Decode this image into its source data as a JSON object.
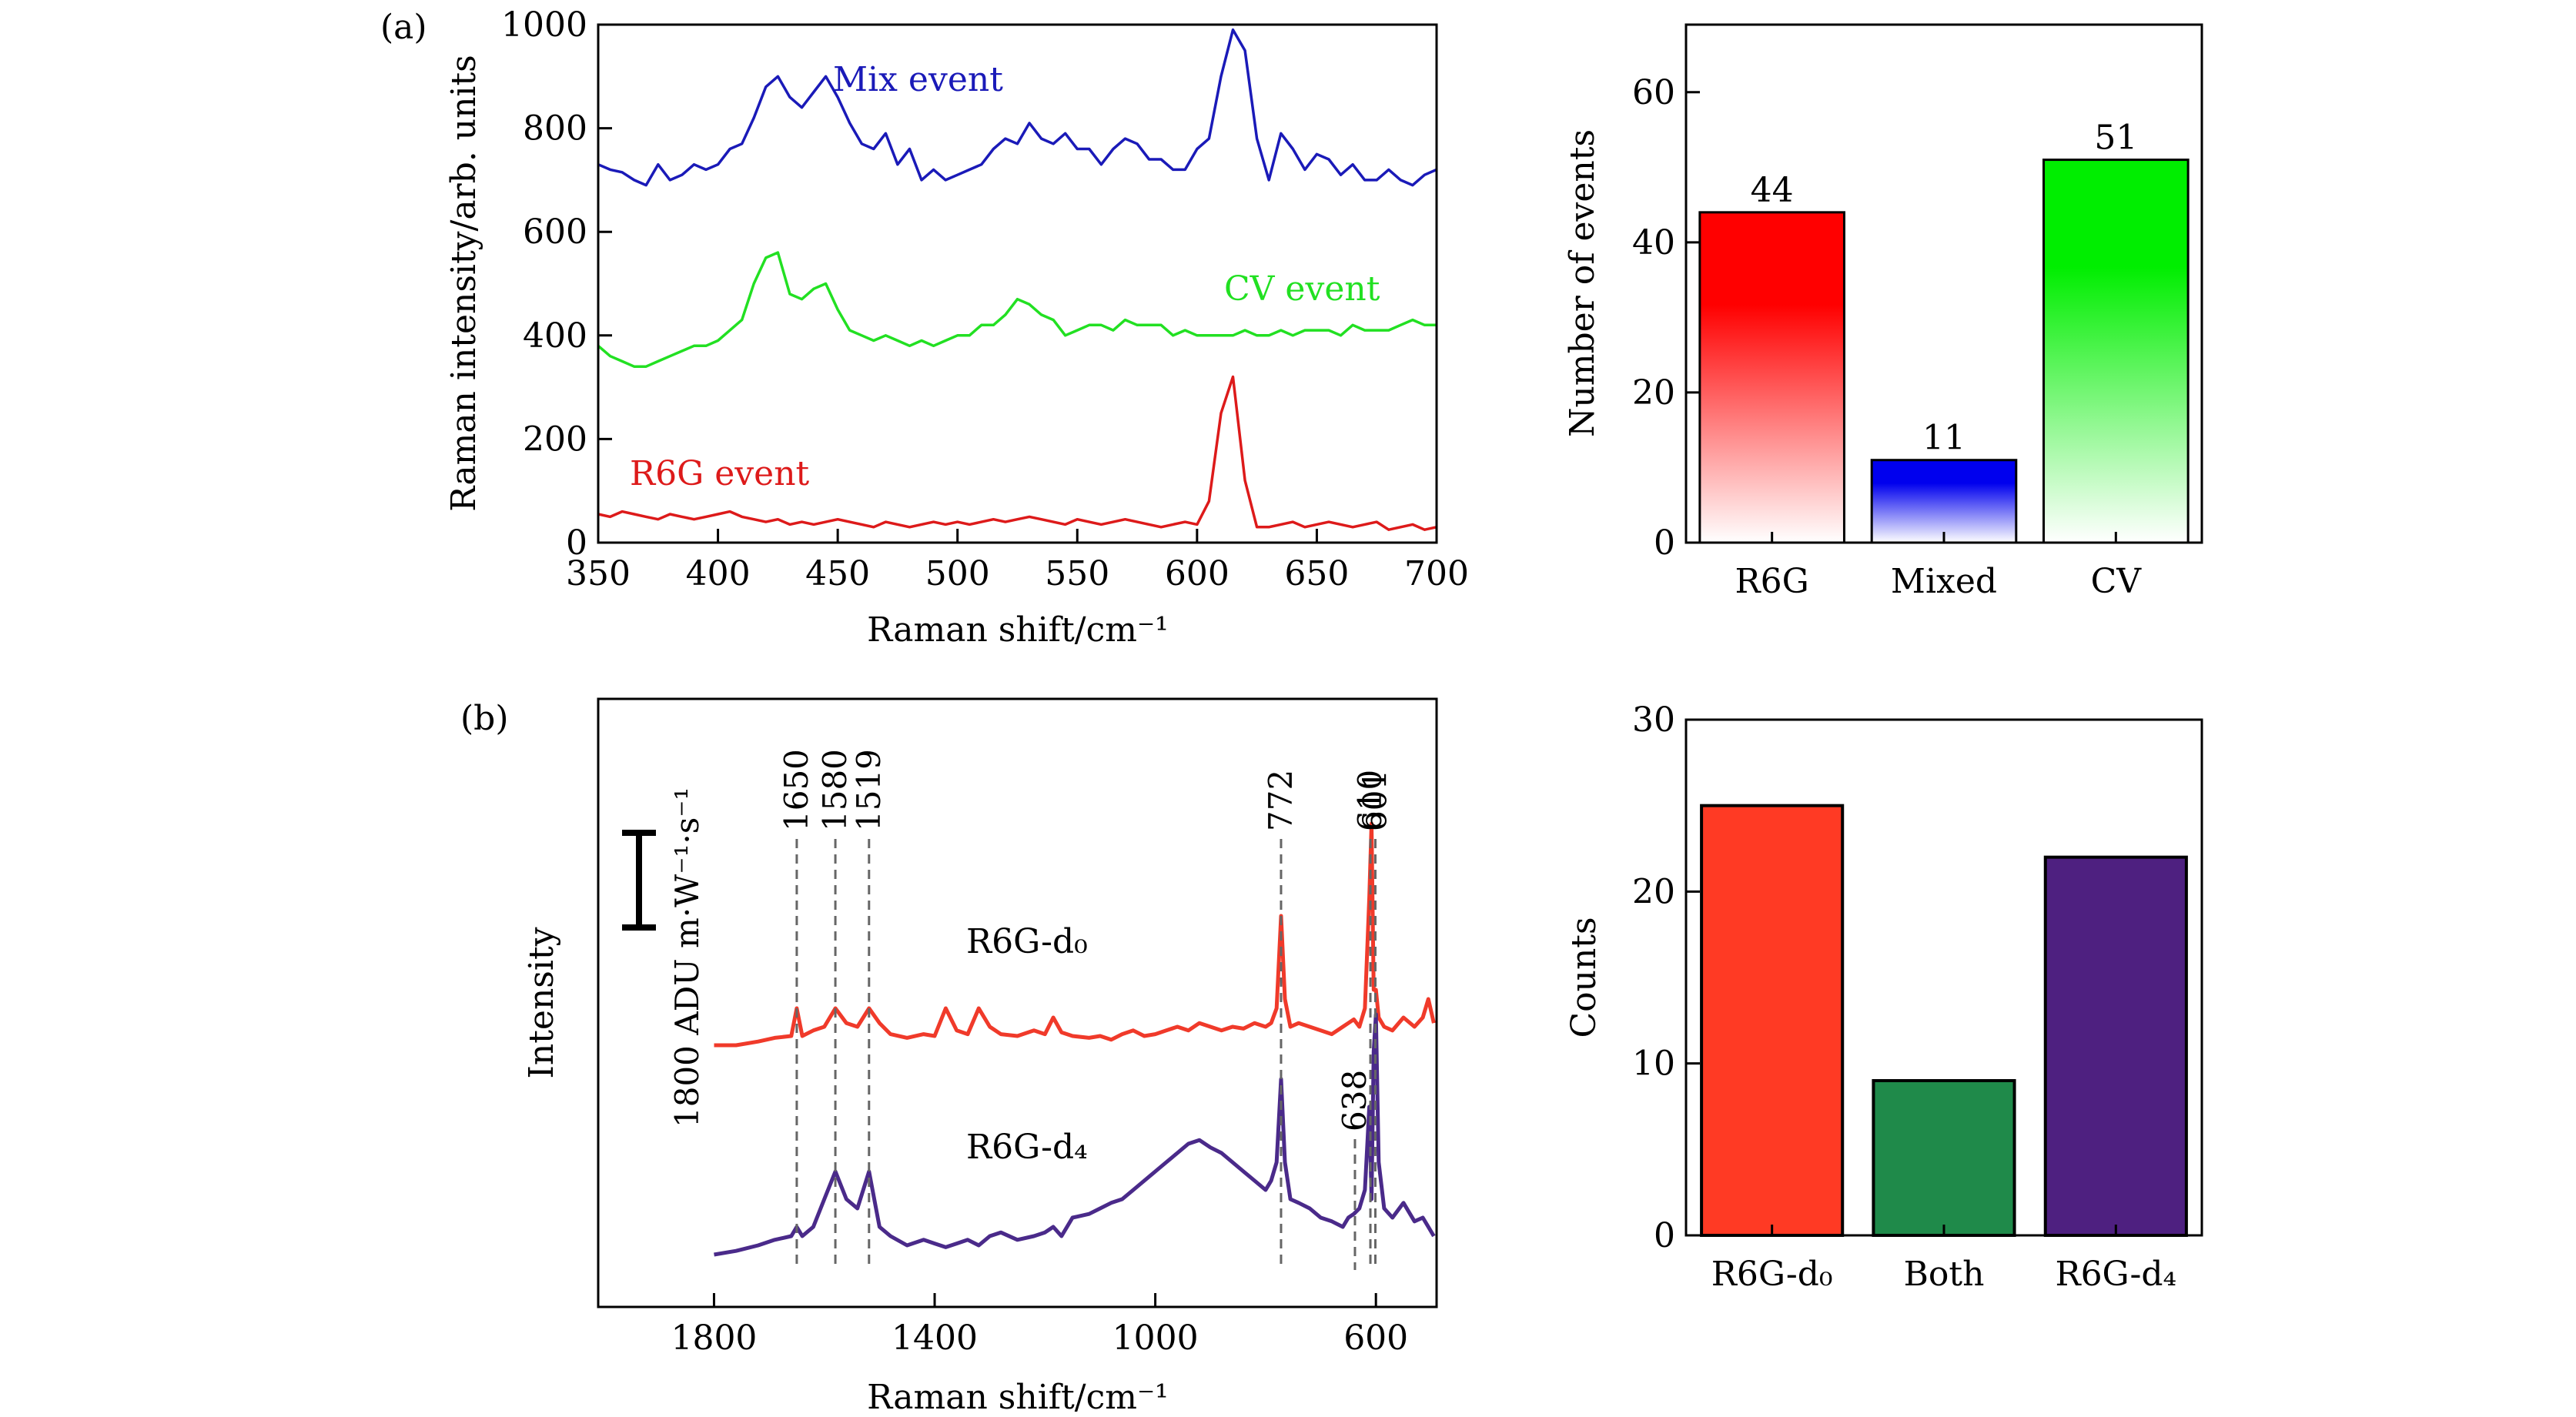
{
  "panel_labels": {
    "a": "(a)",
    "b": "(b)"
  },
  "chart_data": [
    {
      "id": "a_spectra",
      "type": "line",
      "xlabel": "Raman shift/cm⁻¹",
      "ylabel": "Raman intensity/arb. units",
      "xlim": [
        350,
        700
      ],
      "ylim": [
        0,
        1000
      ],
      "xticks": [
        350,
        400,
        450,
        500,
        550,
        600,
        650,
        700
      ],
      "yticks": [
        0,
        200,
        400,
        600,
        800,
        1000
      ],
      "grid": false,
      "series": [
        {
          "name": "Mix event",
          "color": "#1a1ab8",
          "x": [
            350,
            355,
            360,
            365,
            370,
            375,
            380,
            385,
            390,
            395,
            400,
            405,
            410,
            415,
            420,
            425,
            430,
            435,
            440,
            445,
            450,
            455,
            460,
            465,
            470,
            475,
            480,
            485,
            490,
            495,
            500,
            505,
            510,
            515,
            520,
            525,
            530,
            535,
            540,
            545,
            550,
            555,
            560,
            565,
            570,
            575,
            580,
            585,
            590,
            595,
            600,
            605,
            610,
            615,
            620,
            625,
            630,
            635,
            640,
            645,
            650,
            655,
            660,
            665,
            670,
            675,
            680,
            685,
            690,
            695,
            700
          ],
          "y": [
            730,
            720,
            715,
            700,
            690,
            730,
            700,
            710,
            730,
            720,
            730,
            760,
            770,
            820,
            880,
            900,
            860,
            840,
            870,
            900,
            860,
            810,
            770,
            760,
            790,
            730,
            760,
            700,
            720,
            700,
            710,
            720,
            730,
            760,
            780,
            770,
            810,
            780,
            770,
            790,
            760,
            760,
            730,
            760,
            780,
            770,
            740,
            740,
            720,
            720,
            760,
            780,
            900,
            990,
            950,
            780,
            700,
            790,
            760,
            720,
            750,
            740,
            710,
            730,
            700,
            700,
            720,
            700,
            690,
            710,
            720
          ]
        },
        {
          "name": "CV event",
          "color": "#22e022",
          "x": [
            350,
            355,
            360,
            365,
            370,
            375,
            380,
            385,
            390,
            395,
            400,
            405,
            410,
            415,
            420,
            425,
            430,
            435,
            440,
            445,
            450,
            455,
            460,
            465,
            470,
            475,
            480,
            485,
            490,
            495,
            500,
            505,
            510,
            515,
            520,
            525,
            530,
            535,
            540,
            545,
            550,
            555,
            560,
            565,
            570,
            575,
            580,
            585,
            590,
            595,
            600,
            605,
            610,
            615,
            620,
            625,
            630,
            635,
            640,
            645,
            650,
            655,
            660,
            665,
            670,
            675,
            680,
            685,
            690,
            695,
            700
          ],
          "y": [
            380,
            360,
            350,
            340,
            340,
            350,
            360,
            370,
            380,
            380,
            390,
            410,
            430,
            500,
            550,
            560,
            480,
            470,
            490,
            500,
            450,
            410,
            400,
            390,
            400,
            390,
            380,
            390,
            380,
            390,
            400,
            400,
            420,
            420,
            440,
            470,
            460,
            440,
            430,
            400,
            410,
            420,
            420,
            410,
            430,
            420,
            420,
            420,
            400,
            410,
            400,
            400,
            400,
            400,
            410,
            400,
            400,
            410,
            400,
            410,
            410,
            410,
            400,
            420,
            410,
            410,
            410,
            420,
            430,
            420,
            420
          ]
        },
        {
          "name": "R6G event",
          "color": "#dd1a1a",
          "x": [
            350,
            355,
            360,
            365,
            370,
            375,
            380,
            385,
            390,
            395,
            400,
            405,
            410,
            415,
            420,
            425,
            430,
            435,
            440,
            445,
            450,
            455,
            460,
            465,
            470,
            475,
            480,
            485,
            490,
            495,
            500,
            505,
            510,
            515,
            520,
            525,
            530,
            535,
            540,
            545,
            550,
            555,
            560,
            565,
            570,
            575,
            580,
            585,
            590,
            595,
            600,
            605,
            610,
            615,
            620,
            625,
            630,
            635,
            640,
            645,
            650,
            655,
            660,
            665,
            670,
            675,
            680,
            685,
            690,
            695,
            700
          ],
          "y": [
            55,
            50,
            60,
            55,
            50,
            45,
            55,
            50,
            45,
            50,
            55,
            60,
            50,
            45,
            40,
            45,
            35,
            40,
            35,
            40,
            45,
            40,
            35,
            30,
            40,
            35,
            30,
            35,
            40,
            35,
            40,
            35,
            40,
            45,
            40,
            45,
            50,
            45,
            40,
            35,
            45,
            40,
            35,
            40,
            45,
            40,
            35,
            30,
            35,
            40,
            35,
            80,
            250,
            320,
            120,
            30,
            30,
            35,
            40,
            30,
            35,
            40,
            35,
            30,
            35,
            40,
            25,
            30,
            35,
            25,
            30
          ]
        }
      ],
      "annotations": [
        "Mix event",
        "CV event",
        "R6G event"
      ]
    },
    {
      "id": "a_counts",
      "type": "bar",
      "ylabel": "Number of events",
      "ylim": [
        0,
        69
      ],
      "yticks": [
        0,
        20,
        40,
        60
      ],
      "categories": [
        "R6G",
        "Mixed",
        "CV"
      ],
      "values": [
        44,
        11,
        51
      ],
      "data_labels": [
        "44",
        "11",
        "51"
      ],
      "colors": [
        "#ff0000",
        "#0000ee",
        "#00ee00"
      ],
      "fill": "vertical gradient to white"
    },
    {
      "id": "b_spectra",
      "type": "line",
      "xlabel": "Raman shift/cm⁻¹",
      "ylabel": "Intensity",
      "xlim": [
        2010,
        490
      ],
      "xticks": [
        1800,
        1400,
        1000,
        600
      ],
      "y_axis_ticks": false,
      "scale_bar_label": "1800 ADU m·W⁻¹·s⁻¹",
      "peak_markers": [
        "1650",
        "1580",
        "1519",
        "772",
        "610",
        "601",
        "638"
      ],
      "peak_marker_x": [
        1650,
        1580,
        1519,
        772,
        610,
        601,
        638
      ],
      "series": [
        {
          "name": "R6G-d₀",
          "color": "#f03a2a",
          "x": [
            1800,
            1760,
            1720,
            1690,
            1660,
            1650,
            1640,
            1620,
            1600,
            1580,
            1560,
            1540,
            1519,
            1500,
            1480,
            1450,
            1420,
            1400,
            1380,
            1360,
            1340,
            1320,
            1300,
            1280,
            1250,
            1220,
            1200,
            1185,
            1170,
            1150,
            1120,
            1100,
            1080,
            1060,
            1040,
            1020,
            1000,
            980,
            960,
            940,
            920,
            900,
            880,
            860,
            840,
            820,
            800,
            790,
            780,
            772,
            765,
            755,
            740,
            720,
            700,
            680,
            660,
            650,
            640,
            630,
            620,
            612,
            608,
            604,
            600,
            595,
            585,
            570,
            550,
            530,
            515,
            505,
            495
          ],
          "y": [
            0.0,
            0.0,
            0.02,
            0.04,
            0.05,
            0.2,
            0.05,
            0.08,
            0.1,
            0.2,
            0.12,
            0.1,
            0.2,
            0.12,
            0.06,
            0.04,
            0.06,
            0.05,
            0.2,
            0.08,
            0.06,
            0.2,
            0.1,
            0.06,
            0.05,
            0.08,
            0.06,
            0.15,
            0.07,
            0.05,
            0.04,
            0.05,
            0.03,
            0.06,
            0.08,
            0.05,
            0.06,
            0.08,
            0.1,
            0.08,
            0.12,
            0.1,
            0.08,
            0.1,
            0.09,
            0.12,
            0.1,
            0.12,
            0.2,
            0.7,
            0.25,
            0.1,
            0.12,
            0.1,
            0.08,
            0.06,
            0.1,
            0.12,
            0.14,
            0.1,
            0.2,
            0.8,
            1.2,
            0.3,
            0.3,
            0.15,
            0.1,
            0.08,
            0.15,
            0.1,
            0.15,
            0.25,
            0.12
          ]
        },
        {
          "name": "R6G-d₄",
          "color": "#4a2a8a",
          "x": [
            1800,
            1760,
            1720,
            1690,
            1660,
            1650,
            1640,
            1620,
            1600,
            1580,
            1560,
            1540,
            1519,
            1500,
            1480,
            1450,
            1420,
            1400,
            1380,
            1360,
            1340,
            1320,
            1300,
            1280,
            1250,
            1220,
            1200,
            1185,
            1170,
            1150,
            1120,
            1100,
            1080,
            1060,
            1040,
            1020,
            1000,
            980,
            960,
            940,
            920,
            900,
            880,
            860,
            840,
            820,
            800,
            790,
            780,
            772,
            765,
            755,
            740,
            720,
            700,
            680,
            660,
            650,
            640,
            630,
            620,
            612,
            608,
            604,
            600,
            595,
            585,
            570,
            550,
            530,
            515,
            505,
            495
          ],
          "y": [
            0.0,
            0.02,
            0.05,
            0.08,
            0.1,
            0.15,
            0.1,
            0.15,
            0.3,
            0.45,
            0.3,
            0.25,
            0.45,
            0.15,
            0.1,
            0.05,
            0.08,
            0.06,
            0.04,
            0.06,
            0.08,
            0.05,
            0.1,
            0.12,
            0.08,
            0.1,
            0.12,
            0.15,
            0.1,
            0.2,
            0.22,
            0.25,
            0.28,
            0.3,
            0.35,
            0.4,
            0.45,
            0.5,
            0.55,
            0.6,
            0.62,
            0.58,
            0.55,
            0.5,
            0.45,
            0.4,
            0.35,
            0.4,
            0.5,
            0.95,
            0.5,
            0.3,
            0.28,
            0.25,
            0.2,
            0.18,
            0.15,
            0.2,
            0.22,
            0.25,
            0.35,
            0.8,
            0.3,
            1.1,
            1.3,
            0.5,
            0.25,
            0.2,
            0.28,
            0.18,
            0.2,
            0.15,
            0.1
          ]
        }
      ],
      "annotations": [
        "R6G-d₀",
        "R6G-d₄"
      ]
    },
    {
      "id": "b_counts",
      "type": "bar",
      "ylabel": "Counts",
      "ylim": [
        0,
        30
      ],
      "yticks": [
        0,
        10,
        20,
        30
      ],
      "categories": [
        "R6G-d₀",
        "Both",
        "R6G-d₄"
      ],
      "values": [
        25,
        9,
        22
      ],
      "colors": [
        "#ff3a24",
        "#1f8a4a",
        "#4e2080"
      ]
    }
  ]
}
